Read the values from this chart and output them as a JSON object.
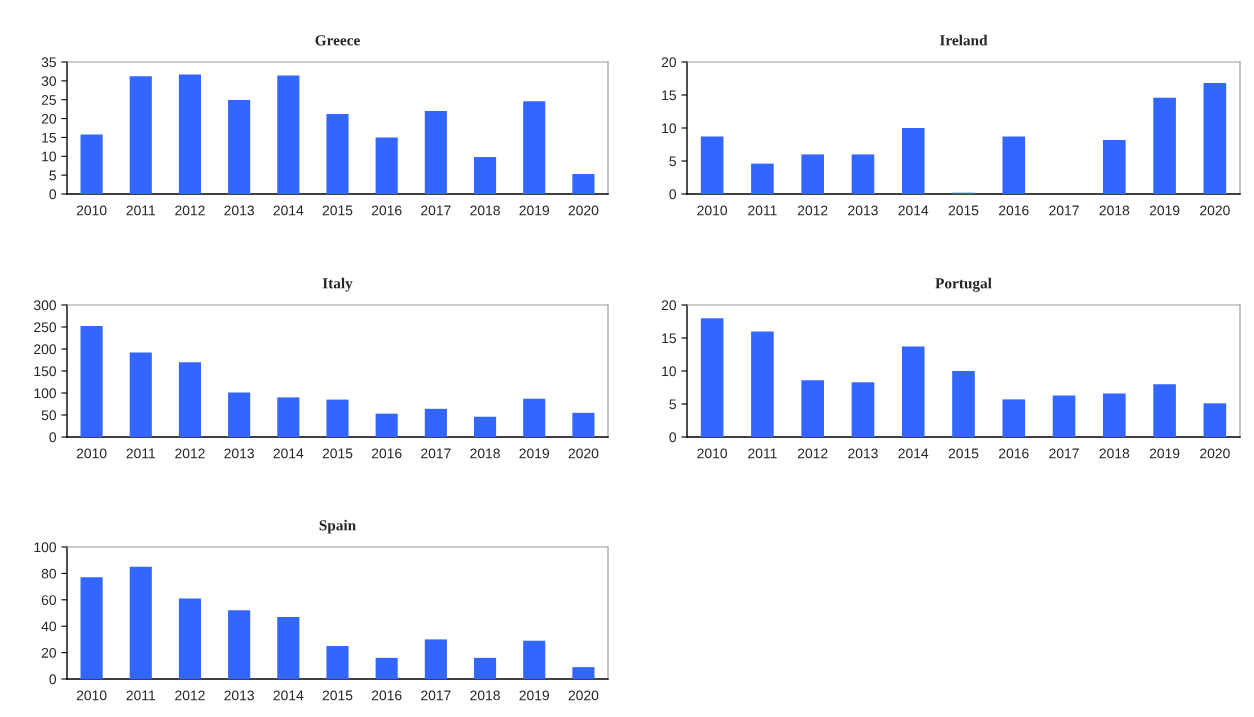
{
  "chart_data": [
    {
      "type": "bar",
      "title": "Greece",
      "categories": [
        "2010",
        "2011",
        "2012",
        "2013",
        "2014",
        "2015",
        "2016",
        "2017",
        "2018",
        "2019",
        "2020"
      ],
      "values": [
        15.8,
        31.2,
        31.7,
        24.9,
        31.4,
        21.2,
        15,
        22,
        9.8,
        24.6,
        5.3
      ],
      "color": "#3366ff",
      "ylim": [
        0,
        35
      ],
      "yticks": [
        0,
        5,
        10,
        15,
        20,
        25,
        30,
        35
      ],
      "grid": false,
      "legend": false
    },
    {
      "type": "bar",
      "title": "Ireland",
      "categories": [
        "2010",
        "2011",
        "2012",
        "2013",
        "2014",
        "2015",
        "2016",
        "2017",
        "2018",
        "2019",
        "2020"
      ],
      "values": [
        8.7,
        4.6,
        6,
        6,
        10,
        0.2,
        8.7,
        0,
        8.2,
        14.6,
        16.8
      ],
      "color": "#3366ff",
      "ylim": [
        0,
        20
      ],
      "yticks": [
        0,
        5,
        10,
        15,
        20
      ],
      "grid": false,
      "legend": false
    },
    {
      "type": "bar",
      "title": "Italy",
      "categories": [
        "2010",
        "2011",
        "2012",
        "2013",
        "2014",
        "2015",
        "2016",
        "2017",
        "2018",
        "2019",
        "2020"
      ],
      "values": [
        252,
        192,
        170,
        101,
        90,
        85,
        53,
        64,
        46,
        87,
        55
      ],
      "color": "#3366ff",
      "ylim": [
        0,
        300
      ],
      "yticks": [
        0,
        50,
        100,
        150,
        200,
        250,
        300
      ],
      "grid": false,
      "legend": false
    },
    {
      "type": "bar",
      "title": "Portugal",
      "categories": [
        "2010",
        "2011",
        "2012",
        "2013",
        "2014",
        "2015",
        "2016",
        "2017",
        "2018",
        "2019",
        "2020"
      ],
      "values": [
        18,
        16,
        8.6,
        8.3,
        13.7,
        10,
        5.7,
        6.3,
        6.6,
        8,
        5.1
      ],
      "color": "#3366ff",
      "ylim": [
        0,
        20
      ],
      "yticks": [
        0,
        5,
        10,
        15,
        20
      ],
      "grid": false,
      "legend": false
    },
    {
      "type": "bar",
      "title": "Spain",
      "categories": [
        "2010",
        "2011",
        "2012",
        "2013",
        "2014",
        "2015",
        "2016",
        "2017",
        "2018",
        "2019",
        "2020"
      ],
      "values": [
        77,
        85,
        61,
        52,
        47,
        25,
        16,
        30,
        16,
        29,
        9
      ],
      "color": "#3366ff",
      "ylim": [
        0,
        100
      ],
      "yticks": [
        0,
        20,
        40,
        60,
        80,
        100
      ],
      "grid": false,
      "legend": false
    }
  ]
}
